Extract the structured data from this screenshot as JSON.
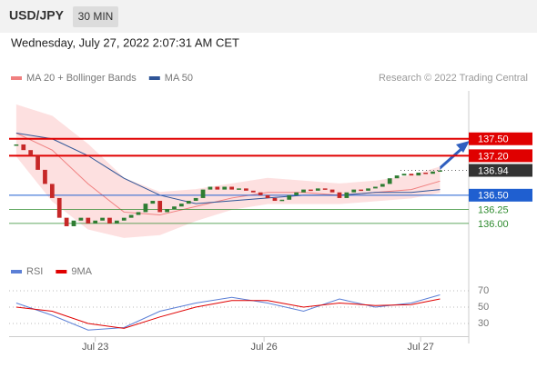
{
  "header": {
    "symbol": "USD/JPY",
    "interval": "30 MIN",
    "timestamp": "Wednesday, July 27, 2022 2:07:31 AM CET"
  },
  "chart_data": [
    {
      "type": "candlestick",
      "credit": "Research © 2022 Trading Central",
      "xlim": [
        -1,
        63
      ],
      "ylim": [
        135.45,
        138.35
      ],
      "up_color": "#2e7d32",
      "down_color": "#c62828",
      "candles": {
        "x": [
          0,
          1,
          2,
          3,
          4,
          5,
          6,
          7,
          8,
          9,
          10,
          11,
          12,
          13,
          14,
          15,
          16,
          17,
          18,
          19,
          20,
          21,
          22,
          23,
          24,
          25,
          26,
          27,
          28,
          29,
          30,
          31,
          32,
          33,
          34,
          35,
          36,
          37,
          38,
          39,
          40,
          41,
          42,
          43,
          44,
          45,
          46,
          47,
          48,
          49,
          50,
          51,
          52,
          53,
          54,
          55,
          56,
          57,
          58,
          59
        ],
        "values": [
          137.4,
          137.3,
          137.2,
          136.95,
          136.7,
          136.45,
          136.1,
          135.95,
          136.05,
          136.1,
          136.0,
          136.05,
          136.1,
          136.0,
          136.05,
          136.1,
          136.15,
          136.2,
          136.35,
          136.4,
          136.2,
          136.25,
          136.3,
          136.35,
          136.4,
          136.45,
          136.6,
          136.65,
          136.6,
          136.65,
          136.6,
          136.62,
          136.58,
          136.55,
          136.5,
          136.45,
          136.4,
          136.42,
          136.5,
          136.55,
          136.6,
          136.58,
          136.62,
          136.6,
          136.55,
          136.45,
          136.55,
          136.6,
          136.58,
          136.62,
          136.65,
          136.7,
          136.8,
          136.85,
          136.88,
          136.85,
          136.9,
          136.88,
          136.92,
          136.94
        ]
      },
      "series": [
        {
          "name": "MA 20 + Bollinger Bands",
          "color": "#f08080",
          "band_color": "#fde0e0",
          "x": [
            0,
            5,
            10,
            15,
            20,
            25,
            30,
            35,
            40,
            45,
            50,
            55,
            59
          ],
          "values": [
            137.6,
            137.3,
            136.7,
            136.2,
            136.15,
            136.3,
            136.45,
            136.55,
            136.55,
            136.5,
            136.55,
            136.6,
            136.75
          ],
          "upper": [
            138.1,
            137.9,
            137.4,
            136.8,
            136.55,
            136.6,
            136.7,
            136.8,
            136.75,
            136.7,
            136.75,
            136.85,
            137.0
          ],
          "lower": [
            137.2,
            136.4,
            135.9,
            135.75,
            135.8,
            136.05,
            136.25,
            136.35,
            136.35,
            136.35,
            136.4,
            136.45,
            136.55
          ]
        },
        {
          "name": "MA 50",
          "color": "#2f5597",
          "x": [
            0,
            5,
            10,
            15,
            20,
            25,
            30,
            35,
            40,
            45,
            50,
            55,
            59
          ],
          "values": [
            137.6,
            137.5,
            137.2,
            136.8,
            136.5,
            136.35,
            136.4,
            136.45,
            136.5,
            136.5,
            136.55,
            136.55,
            136.6
          ]
        }
      ],
      "levels": [
        {
          "value": 137.5,
          "label": "137.50",
          "color": "#e00000",
          "kind": "box"
        },
        {
          "value": 137.2,
          "label": "137.20",
          "color": "#e00000",
          "kind": "box"
        },
        {
          "value": 136.94,
          "label": "136.94",
          "color": "#333333",
          "kind": "current"
        },
        {
          "value": 136.5,
          "label": "136.50",
          "color": "#1f5fd0",
          "kind": "box"
        },
        {
          "value": 136.25,
          "label": "136.25",
          "color": "#2e8b2e",
          "kind": "text"
        },
        {
          "value": 136.0,
          "label": "136.00",
          "color": "#2e8b2e",
          "kind": "text"
        }
      ]
    },
    {
      "type": "line",
      "xlim": [
        -1,
        63
      ],
      "ylim": [
        10,
        80
      ],
      "yticks": [
        30,
        50,
        70
      ],
      "xticks": [
        {
          "value": 11,
          "label": "Jul 23"
        },
        {
          "value": 34.5,
          "label": "Jul 26"
        },
        {
          "value": 56.3,
          "label": "Jul 27"
        }
      ],
      "series": [
        {
          "name": "RSI",
          "color": "#5b7fd6",
          "x": [
            0,
            5,
            10,
            15,
            20,
            25,
            30,
            35,
            40,
            45,
            50,
            55,
            59
          ],
          "values": [
            55,
            40,
            22,
            25,
            45,
            55,
            62,
            55,
            45,
            60,
            50,
            55,
            65
          ]
        },
        {
          "name": "9MA",
          "color": "#e00000",
          "x": [
            0,
            5,
            10,
            15,
            20,
            25,
            30,
            35,
            40,
            45,
            50,
            55,
            59
          ],
          "values": [
            50,
            45,
            30,
            24,
            38,
            50,
            58,
            58,
            50,
            55,
            52,
            53,
            60
          ]
        }
      ]
    }
  ]
}
